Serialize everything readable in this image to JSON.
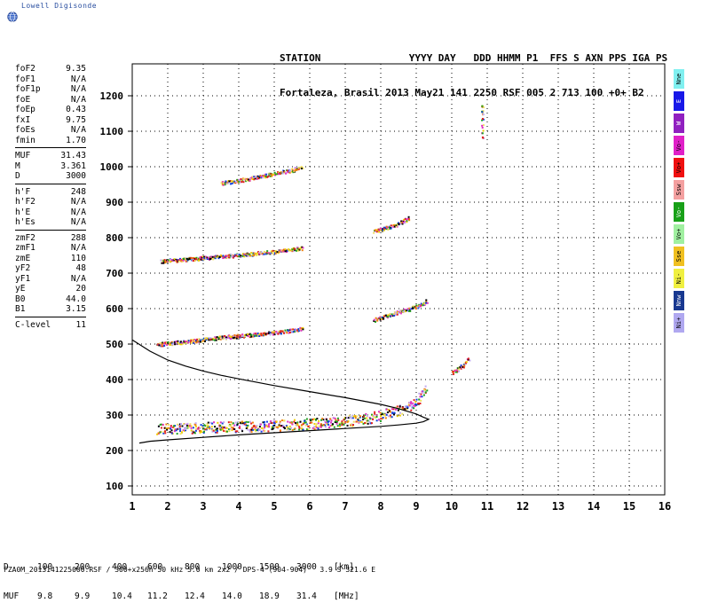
{
  "logo": {
    "text": "Lowell Digisonde",
    "icon": "globe-icon"
  },
  "header": {
    "line1": "STATION               YYYY DAY   DDD HHMM P1  FFS S AXN PPS IGA PS",
    "line2": "Fortaleza, Brasil 2013 May21 141 2250 RSF 005 2 713 100 +0+ B2"
  },
  "params": {
    "group1": [
      {
        "name": "foF2",
        "value": "9.35"
      },
      {
        "name": "foF1",
        "value": "N/A"
      },
      {
        "name": "foF1p",
        "value": "N/A"
      },
      {
        "name": "foE",
        "value": "N/A"
      },
      {
        "name": "foEp",
        "value": "0.43"
      },
      {
        "name": "fxI",
        "value": "9.75"
      },
      {
        "name": "foEs",
        "value": "N/A"
      },
      {
        "name": "fmin",
        "value": "1.70"
      }
    ],
    "group2": [
      {
        "name": "MUF",
        "value": "31.43"
      },
      {
        "name": "M",
        "value": "3.361"
      },
      {
        "name": "D",
        "value": "3000"
      }
    ],
    "group3": [
      {
        "name": "h'F",
        "value": "248"
      },
      {
        "name": "h'F2",
        "value": "N/A"
      },
      {
        "name": "h'E",
        "value": "N/A"
      },
      {
        "name": "h'Es",
        "value": "N/A"
      }
    ],
    "group4": [
      {
        "name": "zmF2",
        "value": "288"
      },
      {
        "name": "zmF1",
        "value": "N/A"
      },
      {
        "name": "zmE",
        "value": "110"
      },
      {
        "name": "yF2",
        "value": "48"
      },
      {
        "name": "yF1",
        "value": "N/A"
      },
      {
        "name": "yE",
        "value": "20"
      },
      {
        "name": "B0",
        "value": "44.0"
      },
      {
        "name": "B1",
        "value": "3.15"
      }
    ],
    "group5": [
      {
        "name": "C-level",
        "value": "11"
      }
    ]
  },
  "legend": [
    {
      "label": "Nne",
      "color": "#80f0f0"
    },
    {
      "label": "E",
      "color": "#1818e8"
    },
    {
      "label": "W",
      "color": "#9020c0"
    },
    {
      "label": "Vo-",
      "color": "#e020c8"
    },
    {
      "label": "Vo+",
      "color": "#f01010"
    },
    {
      "label": "Ssw",
      "color": "#f4a0a0"
    },
    {
      "label": "Vo-",
      "color": "#18a018"
    },
    {
      "label": "Vo+",
      "color": "#a0f0a0"
    },
    {
      "label": "Sse",
      "color": "#f0c020"
    },
    {
      "label": "Ni-",
      "color": "#f0f040"
    },
    {
      "label": "Nnw",
      "color": "#183890"
    },
    {
      "label": "Ni+",
      "color": "#b0a8f0"
    }
  ],
  "muf_table": {
    "d_label": "D",
    "muf_label": "MUF",
    "d_values": [
      "100",
      "200",
      "400",
      "600",
      "800",
      "1000",
      "1500",
      "3000"
    ],
    "muf_values": [
      "9.8",
      "9.9",
      "10.4",
      "11.2",
      "12.4",
      "14.0",
      "18.9",
      "31.4"
    ],
    "d_unit": "[km]",
    "muf_unit": "[MHz]"
  },
  "footer": "FZA0M_2013141225000.RSF / 300+x256h 50 kHz 5.0 km 2x2 / DPS-4 (904-904)   3.9 S 321.6 E",
  "chart_data": {
    "type": "scatter",
    "title": "",
    "xlabel": "",
    "ylabel": "",
    "xlim": [
      1,
      16
    ],
    "ylim": [
      75,
      1290
    ],
    "xticks": [
      1,
      2,
      3,
      4,
      5,
      6,
      7,
      8,
      9,
      10,
      11,
      12,
      13,
      14,
      15,
      16
    ],
    "yticks": [
      100,
      200,
      300,
      400,
      500,
      600,
      700,
      800,
      900,
      1000,
      1100,
      1200
    ],
    "grid": true,
    "profile_curve": {
      "name": "profile",
      "points": [
        [
          1.0,
          512
        ],
        [
          1.5,
          480
        ],
        [
          2.0,
          455
        ],
        [
          2.5,
          438
        ],
        [
          3.0,
          424
        ],
        [
          3.5,
          412
        ],
        [
          4.0,
          402
        ],
        [
          5.0,
          383
        ],
        [
          6.0,
          366
        ],
        [
          7.0,
          349
        ],
        [
          8.0,
          330
        ],
        [
          8.5,
          318
        ],
        [
          9.0,
          303
        ],
        [
          9.2,
          294
        ],
        [
          9.35,
          288
        ],
        [
          9.2,
          281
        ],
        [
          9.0,
          277
        ],
        [
          8.5,
          272
        ],
        [
          8.0,
          268
        ],
        [
          7.0,
          262
        ],
        [
          6.0,
          256
        ],
        [
          5.0,
          250
        ],
        [
          4.0,
          244
        ],
        [
          3.0,
          237
        ],
        [
          2.0,
          230
        ],
        [
          1.5,
          226
        ],
        [
          1.2,
          221
        ]
      ]
    },
    "traces": [
      {
        "name": "O1",
        "x": [
          1.7,
          2.5,
          3.5,
          4.5,
          5.5,
          6.5,
          7.5,
          8.0,
          8.5,
          9.0,
          9.3
        ],
        "y": [
          262,
          265,
          268,
          270,
          274,
          280,
          290,
          300,
          315,
          340,
          380
        ]
      },
      {
        "name": "O2",
        "x": [
          1.7,
          2.5,
          3.5,
          4.5,
          5.0,
          5.5,
          5.8
        ],
        "y": [
          500,
          508,
          520,
          528,
          534,
          540,
          545
        ]
      },
      {
        "name": "O2b",
        "x": [
          7.8,
          8.3,
          8.8,
          9.2,
          9.3
        ],
        "y": [
          570,
          585,
          600,
          615,
          625
        ]
      },
      {
        "name": "O3",
        "x": [
          1.8,
          2.5,
          3.5,
          4.0,
          4.5,
          5.0,
          5.5,
          5.8
        ],
        "y": [
          735,
          740,
          748,
          752,
          757,
          762,
          768,
          772
        ]
      },
      {
        "name": "O3b",
        "x": [
          7.8,
          8.2,
          8.5,
          8.8
        ],
        "y": [
          820,
          830,
          840,
          858
        ]
      },
      {
        "name": "O4",
        "x": [
          3.5,
          4.0,
          4.5,
          5.0,
          5.5,
          5.8
        ],
        "y": [
          955,
          962,
          972,
          982,
          992,
          1000
        ]
      },
      {
        "name": "X1",
        "x": [
          10.0,
          10.3,
          10.5
        ],
        "y": [
          420,
          440,
          465
        ]
      },
      {
        "name": "X2",
        "x": [
          10.85,
          10.85,
          10.85
        ],
        "y": [
          1085,
          1150,
          1185
        ]
      }
    ]
  }
}
